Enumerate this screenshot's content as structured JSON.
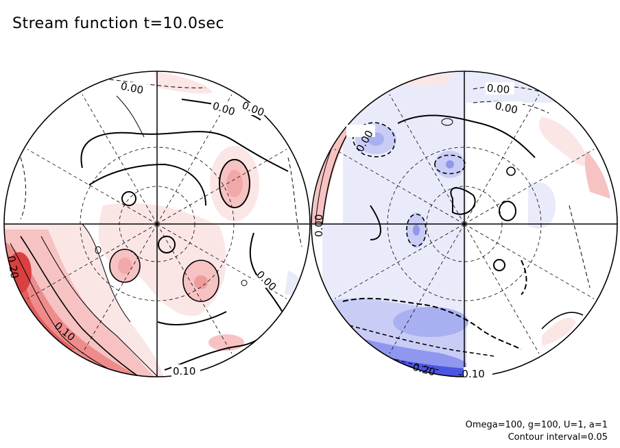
{
  "title": "Stream function t=10.0sec",
  "params": {
    "line1": "Omega=100, g=100, U=1, a=1",
    "line2": "Contour interval=0.05"
  },
  "colors": {
    "positive_light": "#fbe6e6",
    "positive_mid": "#f6c2c2",
    "positive_strong": "#ee8c8c",
    "positive_deep": "#e35e5e",
    "negative_light": "#e9ebfb",
    "negative_mid": "#c9cdf6",
    "negative_strong": "#8f97ee",
    "negative_deep": "#4a55e2",
    "line": "#000000"
  },
  "left_hemisphere": {
    "labels": [
      {
        "text": "0.00"
      },
      {
        "text": "0.00"
      },
      {
        "text": "0.00"
      },
      {
        "text": "0.00"
      },
      {
        "text": "0.10"
      },
      {
        "text": "0.10"
      },
      {
        "text": "0.20"
      }
    ]
  },
  "right_hemisphere": {
    "labels": [
      {
        "text": "0.00"
      },
      {
        "text": "0.00"
      },
      {
        "text": "0.00"
      },
      {
        "text": "0.00"
      },
      {
        "text": "-0.10"
      },
      {
        "text": "-0.20"
      }
    ]
  }
}
